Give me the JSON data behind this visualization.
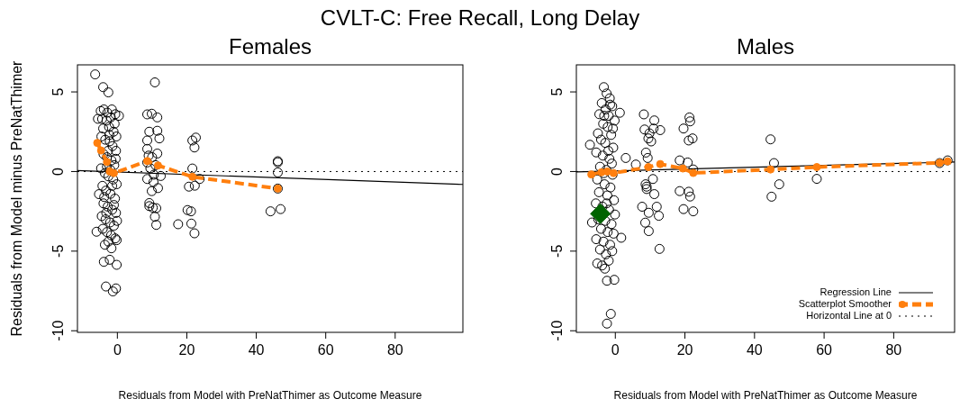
{
  "chart_data": [
    {
      "type": "scatter",
      "title": "CVLT-C: Free Recall, Long Delay",
      "subtitle": "Females",
      "xlabel": "Residuals from Model with PreNatThimer as Outcome Measure",
      "ylabel": "Residuals from Model minus PreNatThimer",
      "xlim": [
        -11.5,
        99.5
      ],
      "ylim": [
        -10.1,
        6.7
      ],
      "xticks": [
        0,
        20,
        40,
        60,
        80
      ],
      "yticks": [
        -10,
        -5,
        0,
        5
      ],
      "legend": false,
      "ref_lines": [
        {
          "axis": "y",
          "value": 0,
          "line_style": "dotted",
          "color": "#000000"
        }
      ],
      "series": [
        {
          "type": "scatter",
          "color": "#000000",
          "marker": "circle",
          "x": [
            -4.8,
            -3.9,
            -2.9,
            -1.6,
            -0.6,
            -4.4,
            -3.1,
            -1.9,
            -0.8,
            -4.1,
            -2.4,
            -1.1,
            -0.3,
            -4.6,
            -3.5,
            -2.2,
            -1.4,
            -0.4,
            -4.0,
            -3.0,
            -1.7,
            -0.9,
            -4.7,
            -3.6,
            -2.6,
            -1.2,
            -0.2,
            -4.3,
            -3.3,
            -2.0,
            -0.7,
            -5.3,
            -4.0,
            -2.8,
            -1.5,
            -0.4,
            -4.5,
            -3.4,
            -2.1,
            -1.0,
            -0.1,
            -4.2,
            -3.0,
            -1.8,
            -0.6,
            -6.0,
            -0.2,
            -1.7,
            -3.6,
            -2.6,
            -3.9,
            -2.2,
            -0.2,
            -3.3,
            -1.3,
            -0.4,
            -5.6,
            0.45,
            -6.4,
            -4.1,
            -2.6,
            -2.0,
            -3.0,
            -1.5,
            -2.7,
            -3.8,
            -0.5,
            -2.3,
            -1.0,
            -3.2,
            8.6,
            9.9,
            11.5,
            9.2,
            11.5,
            12.1,
            8.6,
            8.6,
            11.5,
            8.6,
            12.5,
            8.6,
            10.4,
            11.7,
            9.9,
            9.2,
            10.2,
            11.2,
            10.8,
            11.2,
            9.2,
            10.8,
            10.0,
            9.5,
            11.0,
            10.5,
            9.0,
            21.6,
            22.6,
            22.2,
            21.6,
            20.6,
            22.3,
            23.7,
            20.2,
            21.2,
            17.5,
            21.3,
            22.2,
            46.2,
            46.2,
            46.2,
            46.2,
            47.0,
            44.1
          ],
          "values": [
            3.8,
            3.9,
            3.7,
            3.9,
            3.6,
            3.3,
            3.2,
            3.4,
            3.0,
            2.7,
            2.8,
            2.5,
            2.2,
            2.2,
            2.0,
            1.9,
            1.6,
            1.3,
            1.1,
            0.9,
            0.7,
            0.4,
            0.2,
            -0.1,
            -0.3,
            -0.5,
            -0.8,
            -0.9,
            -1.2,
            -1.4,
            -1.7,
            -1.42,
            -2.0,
            -2.2,
            -2.4,
            -2.6,
            -2.8,
            -3.0,
            -3.2,
            -3.4,
            -3.1,
            -3.6,
            -3.8,
            -4.0,
            -4.2,
            -3.78,
            -4.31,
            -4.82,
            -4.6,
            -4.4,
            -5.67,
            -5.54,
            -5.86,
            -7.22,
            -7.53,
            -7.34,
            3.31,
            3.5,
            6.1,
            5.3,
            4.97,
            0.1,
            0.3,
            -0.9,
            1.3,
            -1.6,
            0.8,
            2.3,
            -2.1,
            -2.6,
            3.59,
            3.63,
            3.4,
            2.5,
            2.56,
            2.08,
            1.95,
            1.42,
            1.13,
            0.57,
            -0.28,
            -0.47,
            -0.66,
            -1.04,
            -1.23,
            -1.98,
            -2.27,
            -2.3,
            -2.84,
            -3.35,
            -2.17,
            5.6,
            0.9,
            0.2,
            0.4,
            -0.2,
            1.0,
            1.95,
            2.13,
            1.51,
            0.19,
            -0.95,
            -0.89,
            -0.47,
            -2.42,
            -2.5,
            -3.31,
            -3.27,
            -3.88,
            0.65,
            0.58,
            -0.06,
            -1.07,
            -2.36,
            -2.5
          ]
        },
        {
          "type": "line",
          "color": "#000000",
          "line_style": "solid",
          "marker": "none",
          "x": [
            -11.5,
            99.5
          ],
          "values": [
            0.06,
            -0.81
          ]
        },
        {
          "type": "line",
          "color": "#ff7f0e",
          "line_style": "dashed",
          "marker": "circle",
          "x": [
            -5.8,
            -4.7,
            -3.0,
            -2.2,
            -1.0,
            8.6,
            11.7,
            21.6,
            46.2
          ],
          "values": [
            1.8,
            1.32,
            0.6,
            0.0,
            -0.1,
            0.66,
            0.38,
            -0.33,
            -1.07
          ]
        }
      ]
    },
    {
      "type": "scatter",
      "subtitle": "Males",
      "xlabel": "Residuals from Model with PreNatThimer as Outcome Measure",
      "xlim": [
        -11.2,
        97.5
      ],
      "ylim": [
        -10.1,
        6.7
      ],
      "xticks": [
        0,
        20,
        40,
        60,
        80
      ],
      "yticks": [
        -10,
        -5,
        0,
        5
      ],
      "legend": "bottom right",
      "ref_lines": [
        {
          "axis": "y",
          "value": 0,
          "label": "Horizontal Line at 0",
          "line_style": "dotted",
          "color": "#000000"
        }
      ],
      "series": [
        {
          "type": "scatter",
          "color": "#000000",
          "marker": "circle",
          "x": [
            -3.3,
            -2.5,
            -1.6,
            -3.9,
            -0.9,
            -2.8,
            -4.6,
            -1.9,
            -0.2,
            -3.5,
            -2.2,
            -5.0,
            -1.2,
            -4.1,
            -2.9,
            -0.6,
            -7.3,
            -5.5,
            -3.6,
            -1.7,
            3.0,
            5.9,
            1.3,
            -4.4,
            -2.6,
            -0.8,
            -5.2,
            -3.1,
            -1.4,
            -4.7,
            -2.3,
            -0.4,
            -5.6,
            -3.7,
            -1.8,
            -0.1,
            -6.7,
            -4.9,
            -2.9,
            -1.1,
            -4.1,
            -2.2,
            -0.5,
            -5.5,
            1.7,
            -3.4,
            -1.5,
            -4.4,
            -2.7,
            -0.9,
            -5.2,
            -3.8,
            -1.9,
            -2.4,
            -0.3,
            -1.3,
            -2.4,
            -3.0,
            -2.0,
            -3.3,
            -1.0,
            -2.5,
            -0.7,
            -3.2,
            -1.5,
            8.2,
            11.2,
            8.4,
            12.9,
            9.5,
            10.3,
            8.8,
            9.3,
            10.8,
            9.0,
            11.2,
            7.7,
            11.9,
            9.6,
            12.5,
            8.6,
            9.6,
            12.7,
            9.0,
            8.7,
            9.8,
            11.0,
            21.3,
            21.5,
            19.6,
            22.2,
            21.1,
            18.5,
            20.8,
            22.4,
            18.5,
            21.1,
            21.5,
            19.6,
            22.4,
            44.6,
            45.6,
            47.1,
            44.9,
            57.9,
            93.2,
            95.5
          ],
          "values": [
            5.3,
            4.9,
            4.6,
            4.3,
            4.1,
            3.9,
            3.6,
            3.5,
            3.2,
            3.0,
            2.8,
            2.4,
            2.3,
            2.0,
            1.8,
            1.5,
            1.68,
            1.2,
            1.0,
            0.8,
            0.85,
            0.44,
            3.69,
            0.3,
            0.1,
            -0.2,
            -0.5,
            -0.8,
            -1.0,
            -1.3,
            -1.5,
            -1.8,
            -2.0,
            -2.2,
            -2.4,
            -2.7,
            -3.2,
            -3.0,
            -3.1,
            -3.3,
            -3.6,
            -3.8,
            -3.9,
            -4.25,
            -4.16,
            -4.4,
            -4.6,
            -4.9,
            -5.2,
            -5.0,
            -5.77,
            -5.9,
            -5.6,
            -6.86,
            -6.8,
            -8.94,
            -9.55,
            -6.1,
            1.3,
            -0.1,
            0.5,
            -2.0,
            2.7,
            3.5,
            4.2,
            3.59,
            3.21,
            2.64,
            2.6,
            2.08,
            1.89,
            1.19,
            0.85,
            -0.47,
            -0.95,
            -1.42,
            -2.21,
            -2.21,
            -2.59,
            -2.78,
            -3.21,
            -3.74,
            -4.86,
            -1.1,
            -0.8,
            2.4,
            2.7,
            3.4,
            3.15,
            2.7,
            2.08,
            1.95,
            0.7,
            0.57,
            0.13,
            -1.23,
            -1.27,
            -1.57,
            -2.36,
            -2.5,
            2.02,
            0.53,
            -0.8,
            -1.58,
            -0.46,
            0.53,
            0.7
          ]
        },
        {
          "type": "scatter",
          "color": "#006400",
          "marker": "diamond",
          "x": [
            -4.3
          ],
          "values": [
            -2.65
          ]
        },
        {
          "type": "line",
          "name": "Regression Line",
          "color": "#000000",
          "line_style": "solid",
          "marker": "none",
          "x": [
            -11.2,
            97.5
          ],
          "values": [
            -0.02,
            0.6
          ]
        },
        {
          "type": "line",
          "name": "Scatterplot Smoother",
          "color": "#ff7f0e",
          "line_style": "dashed",
          "marker": "circle",
          "x": [
            -6.9,
            -4.0,
            -2.3,
            -0.5,
            9.5,
            12.9,
            19.4,
            22.4,
            44.6,
            57.9,
            93.2,
            95.5
          ],
          "values": [
            -0.18,
            -0.05,
            0.0,
            -0.1,
            0.28,
            0.47,
            0.19,
            -0.09,
            0.13,
            0.28,
            0.55,
            0.64
          ]
        }
      ]
    }
  ]
}
